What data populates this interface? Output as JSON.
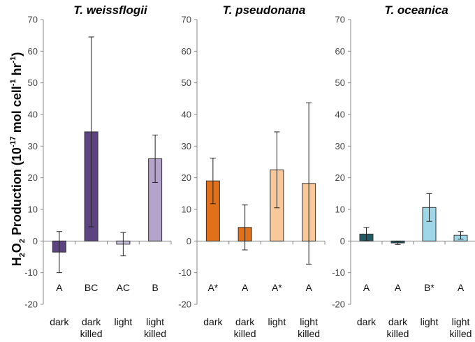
{
  "ylabel": {
    "prefix": "H",
    "sub1": "2",
    "mid": "O",
    "sub2": "2",
    "text": " Production (10",
    "sup1": "-17",
    "text2": " mol cell",
    "sup2": "-1",
    "text3": " hr",
    "sup3": "-1",
    "close": ")"
  },
  "chart_data": [
    {
      "type": "bar",
      "title": "T. weissflogii",
      "categories": [
        "dark",
        "dark killed",
        "light",
        "light killed"
      ],
      "category_lines": [
        [
          "dark"
        ],
        [
          "dark",
          "killed"
        ],
        [
          "light"
        ],
        [
          "light",
          "killed"
        ]
      ],
      "values": [
        -3.5,
        34.5,
        -1,
        26
      ],
      "errors": [
        6.5,
        30,
        3.7,
        7.5
      ],
      "significance": [
        "A",
        "BC",
        "AC",
        "B"
      ],
      "colors": [
        "#5b4480",
        "#5b4480",
        "#cbc3dd",
        "#b4a4cc"
      ],
      "ylim": [
        -20,
        70
      ],
      "yticks": [
        -20,
        -10,
        0,
        10,
        20,
        30,
        40,
        50,
        60,
        70
      ]
    },
    {
      "type": "bar",
      "title": "T. pseudonana",
      "categories": [
        "dark",
        "dark killed",
        "light",
        "light killed"
      ],
      "category_lines": [
        [
          "dark"
        ],
        [
          "dark",
          "killed"
        ],
        [
          "light"
        ],
        [
          "light",
          "killed"
        ]
      ],
      "values": [
        19,
        4.3,
        22.5,
        18.2
      ],
      "errors": [
        7.2,
        7.1,
        12,
        25.5
      ],
      "significance": [
        "A*",
        "A",
        "A*",
        "A"
      ],
      "colors": [
        "#e0701a",
        "#e0701a",
        "#f9c89a",
        "#f9c89a"
      ],
      "ylim": [
        -20,
        70
      ],
      "yticks": [
        -20,
        -10,
        0,
        10,
        20,
        30,
        40,
        50,
        60,
        70
      ]
    },
    {
      "type": "bar",
      "title": "T. oceanica",
      "categories": [
        "dark",
        "dark killed",
        "light",
        "light killed"
      ],
      "category_lines": [
        [
          "dark"
        ],
        [
          "dark",
          "killed"
        ],
        [
          "light"
        ],
        [
          "light",
          "killed"
        ]
      ],
      "values": [
        2.2,
        -0.6,
        10.6,
        1.8
      ],
      "errors": [
        2.1,
        0.5,
        4.4,
        1.2
      ],
      "significance": [
        "A",
        "A",
        "B*",
        "A"
      ],
      "colors": [
        "#225b66",
        "#225b66",
        "#9fd6e8",
        "#9fd6e8"
      ],
      "ylim": [
        -20,
        70
      ],
      "yticks": [
        -20,
        -10,
        0,
        10,
        20,
        30,
        40,
        50,
        60,
        70
      ]
    }
  ]
}
